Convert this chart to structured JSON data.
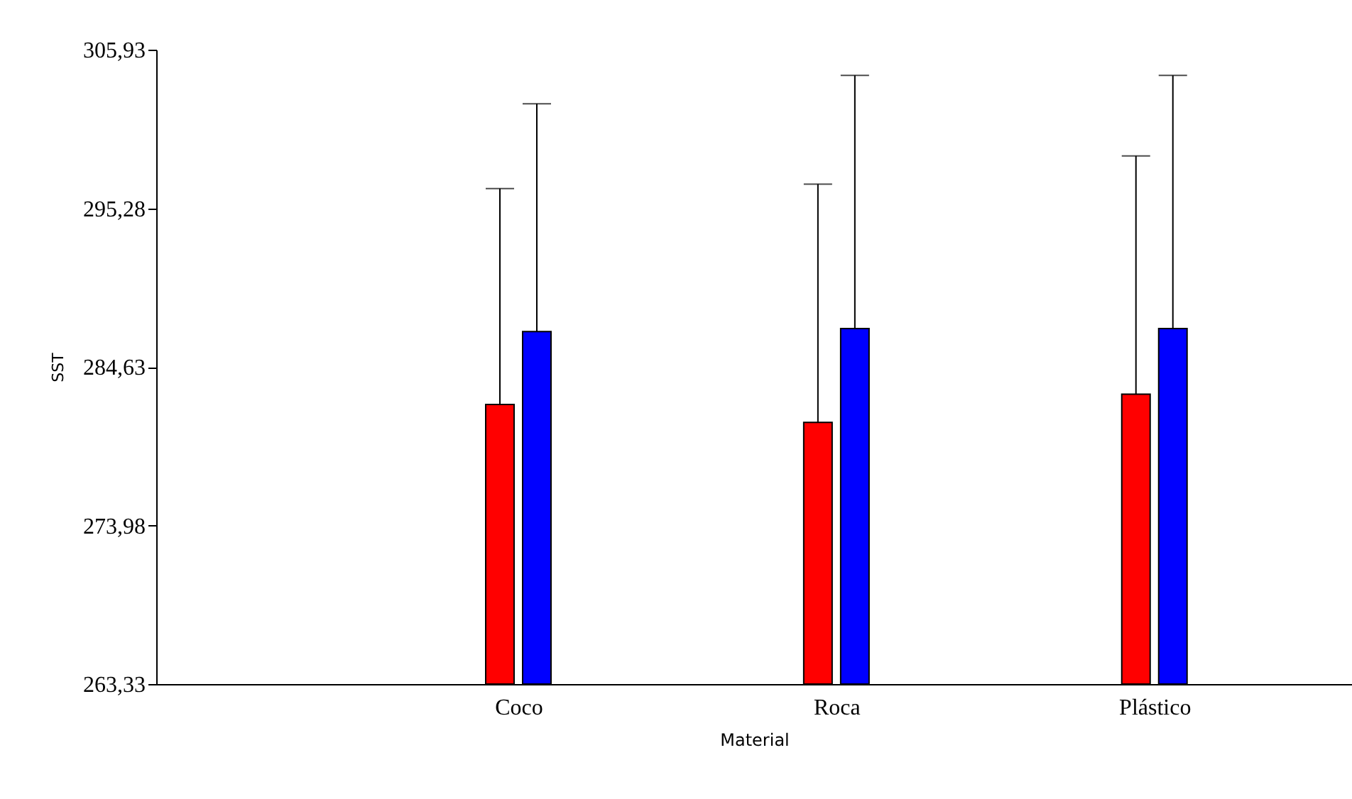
{
  "chart_data": {
    "type": "bar",
    "xlabel": "Material",
    "ylabel": "SST",
    "categories": [
      "Coco",
      "Roca",
      "Plástico"
    ],
    "series": [
      {
        "color": "#ff0000",
        "values": [
          282.1,
          280.9,
          282.8
        ],
        "errors": [
          [
            282.1,
            296.6
          ],
          [
            280.9,
            296.9
          ],
          [
            282.8,
            298.8
          ]
        ]
      },
      {
        "color": "#0000ff",
        "values": [
          287.0,
          287.2,
          287.2
        ],
        "errors": [
          [
            287.0,
            302.3
          ],
          [
            287.2,
            304.2
          ],
          [
            287.2,
            304.2
          ]
        ]
      }
    ],
    "ylim": [
      263.33,
      305.93
    ],
    "yticks": [
      {
        "value": 263.33,
        "label": "263,33"
      },
      {
        "value": 273.98,
        "label": "273,98"
      },
      {
        "value": 284.63,
        "label": "284,63"
      },
      {
        "value": 295.28,
        "label": "295,28"
      },
      {
        "value": 305.93,
        "label": "305,93"
      }
    ],
    "grid": false
  }
}
